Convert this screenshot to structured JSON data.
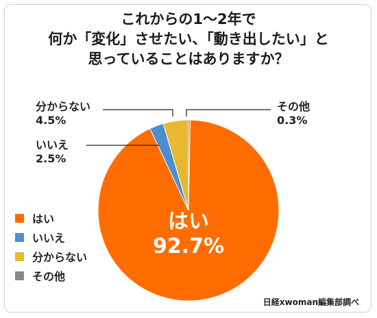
{
  "chart_data": {
    "type": "pie",
    "title_lines": [
      "これからの1～2年で",
      "何か「変化」させたい、「動き出したい」と",
      "思っていることはありますか？"
    ],
    "slices": [
      {
        "label": "はい",
        "value": 92.7,
        "value_text": "92.7%",
        "color": "#ff6d00"
      },
      {
        "label": "いいえ",
        "value": 2.5,
        "value_text": "2.5%",
        "color": "#4a8fd0"
      },
      {
        "label": "分からない",
        "value": 4.5,
        "value_text": "4.5%",
        "color": "#e8b930"
      },
      {
        "label": "その他",
        "value": 0.3,
        "value_text": "0.3%",
        "color": "#888888"
      }
    ],
    "legend_position": "left"
  },
  "source": "日経xwoman編集部調べ"
}
